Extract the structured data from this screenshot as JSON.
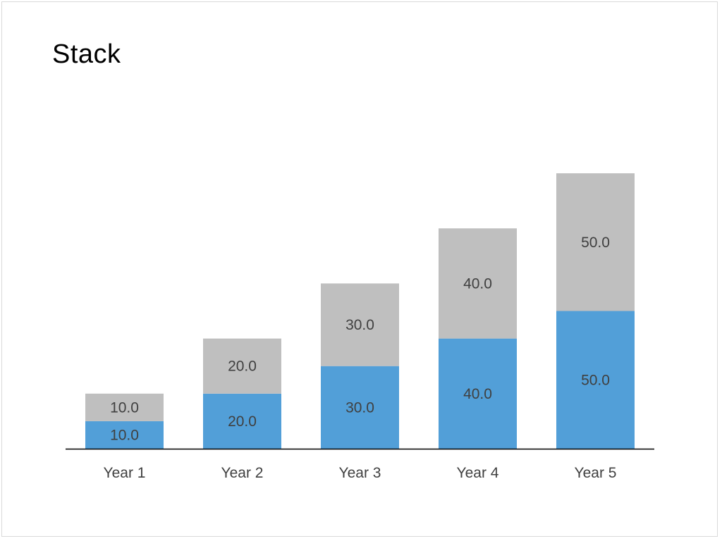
{
  "chart_data": {
    "type": "bar",
    "stacked": true,
    "title": "Stack",
    "categories": [
      "Year 1",
      "Year 2",
      "Year 3",
      "Year 4",
      "Year 5"
    ],
    "series": [
      {
        "values": [
          10,
          20,
          30,
          40,
          50
        ],
        "color": "#529fd8"
      },
      {
        "values": [
          10,
          20,
          30,
          40,
          50
        ],
        "color": "#bfbfbf"
      }
    ],
    "value_format": "0.0",
    "ylim": [
      0,
      100
    ],
    "grid": false,
    "legend": "none"
  }
}
